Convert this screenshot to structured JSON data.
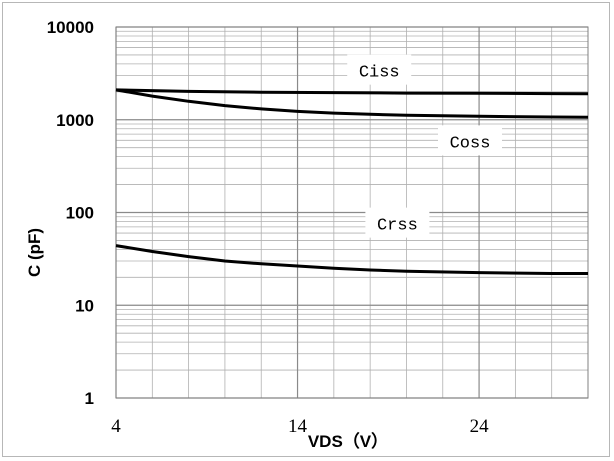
{
  "chart_data": {
    "type": "line",
    "title": "",
    "xlabel": "VDS（V）",
    "ylabel": "C (pF)",
    "yscale": "log",
    "xlim": [
      4,
      30
    ],
    "ylim": [
      1,
      10000
    ],
    "grid": true,
    "legend": "none",
    "x_ticks": [
      4,
      14,
      24
    ],
    "x_tick_labels": [
      "4",
      "14",
      "24"
    ],
    "y_ticks": [
      1,
      10,
      100,
      1000,
      10000
    ],
    "y_tick_labels": [
      "1",
      "10",
      "100",
      "1000",
      "10000"
    ],
    "series": [
      {
        "name": "Ciss",
        "x": [
          4,
          8,
          12,
          16,
          20,
          24,
          28,
          30
        ],
        "y": [
          2100,
          2020,
          1980,
          1960,
          1940,
          1930,
          1915,
          1910
        ]
      },
      {
        "name": "Coss",
        "x": [
          4,
          6,
          8,
          10,
          12,
          14,
          16,
          18,
          20,
          24,
          28,
          30
        ],
        "y": [
          2100,
          1800,
          1580,
          1420,
          1310,
          1230,
          1180,
          1145,
          1120,
          1090,
          1070,
          1065
        ]
      },
      {
        "name": "Crss",
        "x": [
          4,
          6,
          8,
          10,
          12,
          14,
          16,
          18,
          20,
          24,
          28,
          30
        ],
        "y": [
          44,
          38,
          33.5,
          30,
          28,
          26.5,
          25,
          24,
          23.3,
          22.5,
          22,
          22
        ]
      }
    ]
  }
}
